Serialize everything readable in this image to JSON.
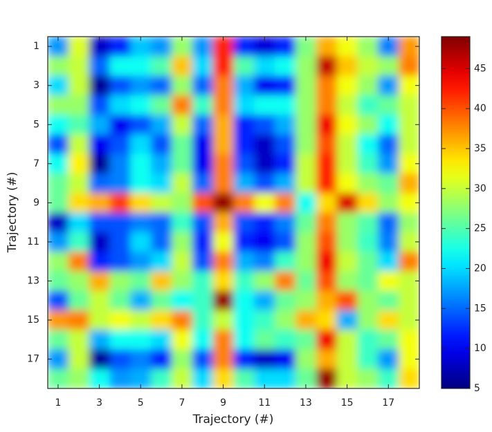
{
  "chart_data": {
    "type": "heatmap",
    "x_label": "Trajectory (#)",
    "y_label": "Trajectory (#)",
    "x": [
      1,
      2,
      3,
      4,
      5,
      6,
      7,
      8,
      9,
      10,
      11,
      12,
      13,
      14,
      15,
      16,
      17,
      18
    ],
    "y": [
      1,
      2,
      3,
      4,
      5,
      6,
      7,
      8,
      9,
      10,
      11,
      12,
      13,
      14,
      15,
      16,
      17,
      18
    ],
    "xlim": [
      0.5,
      18.5
    ],
    "ylim": [
      18.5,
      0.5
    ],
    "xticks": [
      1,
      3,
      5,
      7,
      9,
      11,
      13,
      15,
      17
    ],
    "yticks": [
      1,
      3,
      5,
      7,
      9,
      11,
      13,
      15,
      17
    ],
    "colormap": "jet",
    "clim": [
      5,
      49
    ],
    "cticks": [
      5,
      10,
      15,
      20,
      25,
      30,
      35,
      40,
      45
    ],
    "z": [
      [
        17,
        31,
        8,
        12,
        19,
        17,
        28,
        17,
        42,
        12,
        9,
        12,
        27,
        36,
        32,
        28,
        16,
        37
      ],
      [
        28,
        30,
        15,
        22,
        22,
        25,
        35,
        20,
        42,
        25,
        20,
        22,
        28,
        46,
        35,
        30,
        28,
        38
      ],
      [
        20,
        30,
        6,
        14,
        17,
        15,
        28,
        15,
        38,
        18,
        10,
        12,
        28,
        38,
        32,
        28,
        17,
        32
      ],
      [
        28,
        28,
        14,
        20,
        22,
        26,
        38,
        24,
        38,
        20,
        22,
        22,
        28,
        38,
        30,
        24,
        26,
        30
      ],
      [
        22,
        25,
        18,
        10,
        14,
        18,
        30,
        15,
        36,
        12,
        14,
        18,
        28,
        44,
        32,
        28,
        22,
        30
      ],
      [
        14,
        30,
        10,
        14,
        20,
        14,
        26,
        10,
        36,
        12,
        8,
        14,
        28,
        40,
        30,
        22,
        15,
        30
      ],
      [
        22,
        33,
        6,
        16,
        22,
        18,
        26,
        10,
        38,
        14,
        8,
        12,
        30,
        42,
        30,
        24,
        17,
        32
      ],
      [
        26,
        30,
        15,
        16,
        22,
        20,
        30,
        15,
        38,
        18,
        14,
        18,
        30,
        42,
        32,
        28,
        26,
        36
      ],
      [
        26,
        34,
        36,
        41,
        34,
        30,
        28,
        40,
        48,
        38,
        32,
        38,
        22,
        34,
        45,
        34,
        28,
        32
      ],
      [
        8,
        20,
        14,
        14,
        16,
        15,
        24,
        14,
        36,
        14,
        12,
        16,
        26,
        38,
        28,
        25,
        15,
        28
      ],
      [
        17,
        24,
        8,
        14,
        20,
        15,
        28,
        12,
        32,
        12,
        10,
        14,
        28,
        40,
        28,
        24,
        16,
        30
      ],
      [
        28,
        38,
        12,
        14,
        17,
        20,
        30,
        14,
        38,
        18,
        16,
        24,
        28,
        44,
        30,
        26,
        20,
        38
      ],
      [
        26,
        28,
        36,
        28,
        26,
        35,
        28,
        24,
        34,
        24,
        28,
        38,
        26,
        40,
        28,
        26,
        32,
        30
      ],
      [
        14,
        26,
        30,
        26,
        18,
        26,
        22,
        24,
        48,
        22,
        18,
        26,
        28,
        36,
        40,
        28,
        26,
        30
      ],
      [
        37,
        38,
        30,
        32,
        30,
        34,
        38,
        24,
        30,
        22,
        24,
        28,
        36,
        34,
        18,
        28,
        34,
        30
      ],
      [
        26,
        30,
        18,
        22,
        22,
        20,
        32,
        22,
        38,
        22,
        26,
        24,
        26,
        44,
        30,
        24,
        26,
        32
      ],
      [
        17,
        30,
        6,
        14,
        16,
        12,
        28,
        14,
        38,
        12,
        8,
        10,
        28,
        36,
        30,
        24,
        17,
        32
      ],
      [
        26,
        28,
        22,
        17,
        18,
        24,
        30,
        20,
        34,
        25,
        20,
        20,
        26,
        48,
        30,
        28,
        24,
        34
      ]
    ]
  }
}
